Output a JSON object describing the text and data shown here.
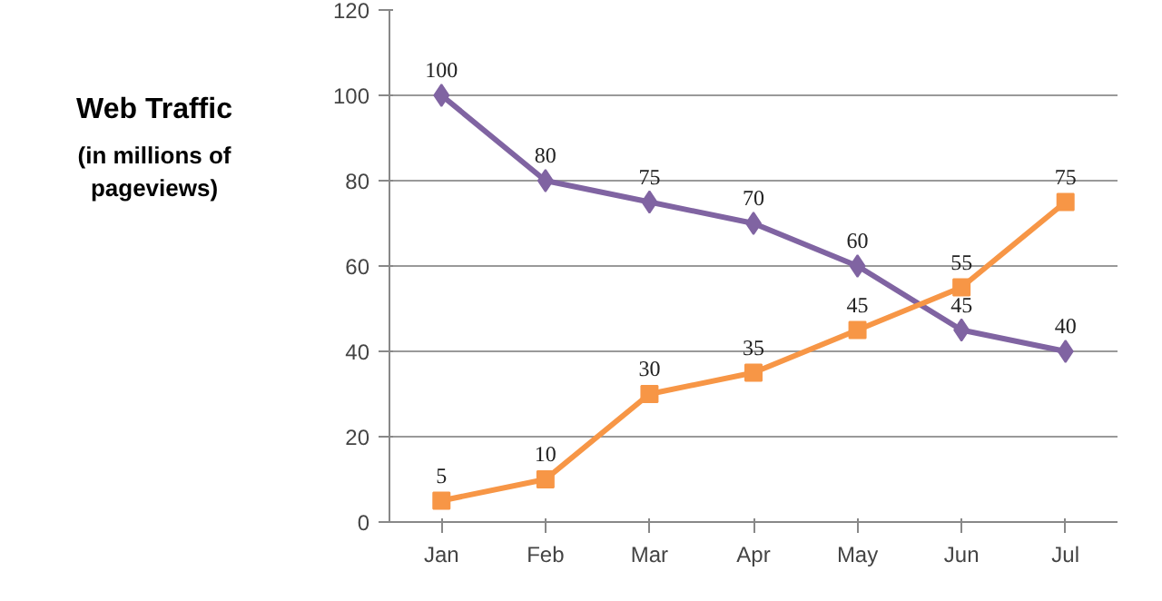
{
  "chart_data": {
    "type": "line",
    "title": "Web Traffic",
    "subtitle": "(in millions of pageviews)",
    "categories": [
      "Jan",
      "Feb",
      "Mar",
      "Apr",
      "May",
      "Jun",
      "Jul"
    ],
    "series": [
      {
        "color": "#8064a2",
        "marker": "diamond",
        "values": [
          100,
          80,
          75,
          70,
          60,
          45,
          40
        ]
      },
      {
        "color": "#f79646",
        "marker": "square",
        "values": [
          5,
          10,
          30,
          35,
          45,
          55,
          75
        ]
      }
    ],
    "ylim": [
      0,
      120
    ],
    "yticks": [
      0,
      20,
      40,
      60,
      80,
      100,
      120
    ],
    "grid": "y",
    "data_labels": true,
    "line_style": "solid"
  }
}
